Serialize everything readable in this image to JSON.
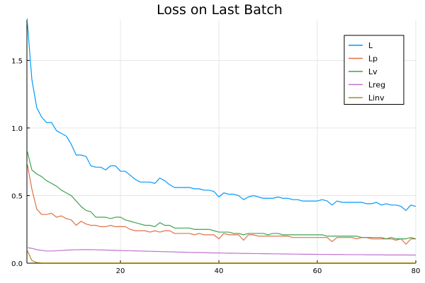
{
  "chart_data": {
    "type": "line",
    "title": "Loss on Last Batch",
    "xlabel": "",
    "ylabel": "",
    "xlim": [
      1,
      80
    ],
    "ylim": [
      0,
      1.8
    ],
    "x_ticks": [
      20,
      40,
      60,
      80
    ],
    "y_ticks": [
      0.0,
      0.5,
      1.0,
      1.5
    ],
    "x_tick_labels": [
      "20",
      "40",
      "60",
      "80"
    ],
    "y_tick_labels": [
      "0.0",
      "0.5",
      "1.0",
      "1.5"
    ],
    "grid": true,
    "legend_position": "top-right",
    "x": [
      1,
      2,
      3,
      4,
      5,
      6,
      7,
      8,
      9,
      10,
      11,
      12,
      13,
      14,
      15,
      16,
      17,
      18,
      19,
      20,
      21,
      22,
      23,
      24,
      25,
      26,
      27,
      28,
      29,
      30,
      31,
      32,
      33,
      34,
      35,
      36,
      37,
      38,
      39,
      40,
      41,
      42,
      43,
      44,
      45,
      46,
      47,
      48,
      49,
      50,
      51,
      52,
      53,
      54,
      55,
      56,
      57,
      58,
      59,
      60,
      61,
      62,
      63,
      64,
      65,
      66,
      67,
      68,
      69,
      70,
      71,
      72,
      73,
      74,
      75,
      76,
      77,
      78,
      79,
      80
    ],
    "series": [
      {
        "name": "L",
        "color": "#009AFA",
        "values": [
          1.82,
          1.36,
          1.15,
          1.08,
          1.04,
          1.04,
          0.98,
          0.96,
          0.94,
          0.88,
          0.8,
          0.8,
          0.79,
          0.72,
          0.71,
          0.71,
          0.69,
          0.72,
          0.72,
          0.68,
          0.68,
          0.65,
          0.62,
          0.6,
          0.6,
          0.6,
          0.59,
          0.63,
          0.61,
          0.58,
          0.56,
          0.56,
          0.56,
          0.56,
          0.55,
          0.55,
          0.54,
          0.54,
          0.53,
          0.49,
          0.52,
          0.51,
          0.51,
          0.5,
          0.47,
          0.49,
          0.5,
          0.49,
          0.48,
          0.48,
          0.48,
          0.49,
          0.48,
          0.48,
          0.47,
          0.47,
          0.46,
          0.46,
          0.46,
          0.46,
          0.47,
          0.46,
          0.43,
          0.46,
          0.45,
          0.45,
          0.45,
          0.45,
          0.45,
          0.44,
          0.44,
          0.45,
          0.43,
          0.44,
          0.43,
          0.43,
          0.42,
          0.39,
          0.43,
          0.42
        ]
      },
      {
        "name": "Lp",
        "color": "#E36F47",
        "values": [
          0.75,
          0.55,
          0.4,
          0.36,
          0.36,
          0.37,
          0.34,
          0.35,
          0.33,
          0.32,
          0.28,
          0.31,
          0.29,
          0.28,
          0.28,
          0.27,
          0.27,
          0.28,
          0.27,
          0.27,
          0.27,
          0.25,
          0.24,
          0.24,
          0.24,
          0.23,
          0.24,
          0.23,
          0.24,
          0.24,
          0.22,
          0.22,
          0.22,
          0.22,
          0.21,
          0.22,
          0.21,
          0.21,
          0.21,
          0.18,
          0.22,
          0.21,
          0.21,
          0.21,
          0.17,
          0.21,
          0.21,
          0.2,
          0.2,
          0.2,
          0.2,
          0.2,
          0.2,
          0.2,
          0.19,
          0.19,
          0.19,
          0.19,
          0.19,
          0.19,
          0.19,
          0.19,
          0.16,
          0.19,
          0.19,
          0.19,
          0.19,
          0.18,
          0.19,
          0.19,
          0.18,
          0.18,
          0.18,
          0.18,
          0.18,
          0.17,
          0.18,
          0.14,
          0.18,
          0.18
        ]
      },
      {
        "name": "Lv",
        "color": "#3EA44E",
        "values": [
          0.84,
          0.69,
          0.66,
          0.64,
          0.61,
          0.59,
          0.57,
          0.54,
          0.52,
          0.5,
          0.46,
          0.42,
          0.39,
          0.38,
          0.34,
          0.34,
          0.34,
          0.33,
          0.34,
          0.34,
          0.32,
          0.31,
          0.3,
          0.29,
          0.28,
          0.28,
          0.27,
          0.3,
          0.28,
          0.28,
          0.26,
          0.26,
          0.26,
          0.26,
          0.25,
          0.25,
          0.25,
          0.25,
          0.24,
          0.23,
          0.23,
          0.23,
          0.22,
          0.22,
          0.21,
          0.22,
          0.22,
          0.22,
          0.22,
          0.21,
          0.22,
          0.22,
          0.21,
          0.21,
          0.21,
          0.21,
          0.21,
          0.21,
          0.21,
          0.21,
          0.21,
          0.2,
          0.2,
          0.2,
          0.2,
          0.2,
          0.2,
          0.2,
          0.19,
          0.19,
          0.19,
          0.19,
          0.19,
          0.18,
          0.19,
          0.18,
          0.18,
          0.18,
          0.19,
          0.18
        ]
      },
      {
        "name": "Lreg",
        "color": "#C271D2",
        "values": [
          0.115,
          0.11,
          0.1,
          0.095,
          0.09,
          0.09,
          0.092,
          0.094,
          0.096,
          0.098,
          0.099,
          0.1,
          0.1,
          0.1,
          0.099,
          0.098,
          0.097,
          0.096,
          0.095,
          0.094,
          0.093,
          0.092,
          0.091,
          0.09,
          0.089,
          0.088,
          0.087,
          0.086,
          0.085,
          0.084,
          0.083,
          0.082,
          0.081,
          0.08,
          0.079,
          0.079,
          0.078,
          0.077,
          0.076,
          0.076,
          0.075,
          0.074,
          0.074,
          0.073,
          0.072,
          0.072,
          0.071,
          0.071,
          0.07,
          0.07,
          0.069,
          0.069,
          0.068,
          0.068,
          0.067,
          0.067,
          0.066,
          0.066,
          0.066,
          0.065,
          0.065,
          0.065,
          0.064,
          0.064,
          0.064,
          0.063,
          0.063,
          0.063,
          0.063,
          0.062,
          0.062,
          0.062,
          0.062,
          0.061,
          0.061,
          0.061,
          0.061,
          0.061,
          0.06,
          0.06
        ]
      },
      {
        "name": "Linv",
        "color": "#AC8D18",
        "values": [
          0.1,
          0.02,
          0.005,
          0.003,
          0.002,
          0.002,
          0.002,
          0.002,
          0.002,
          0.002,
          0.002,
          0.002,
          0.002,
          0.002,
          0.002,
          0.002,
          0.002,
          0.002,
          0.002,
          0.002,
          0.002,
          0.002,
          0.002,
          0.002,
          0.002,
          0.002,
          0.002,
          0.002,
          0.002,
          0.002,
          0.002,
          0.002,
          0.002,
          0.002,
          0.002,
          0.002,
          0.002,
          0.002,
          0.002,
          0.002,
          0.002,
          0.002,
          0.002,
          0.002,
          0.002,
          0.002,
          0.002,
          0.002,
          0.002,
          0.002,
          0.002,
          0.002,
          0.002,
          0.002,
          0.002,
          0.002,
          0.002,
          0.002,
          0.002,
          0.002,
          0.002,
          0.002,
          0.002,
          0.002,
          0.002,
          0.002,
          0.002,
          0.002,
          0.002,
          0.002,
          0.002,
          0.002,
          0.002,
          0.002,
          0.002,
          0.002,
          0.002,
          0.002,
          0.002,
          0.002
        ]
      }
    ]
  }
}
